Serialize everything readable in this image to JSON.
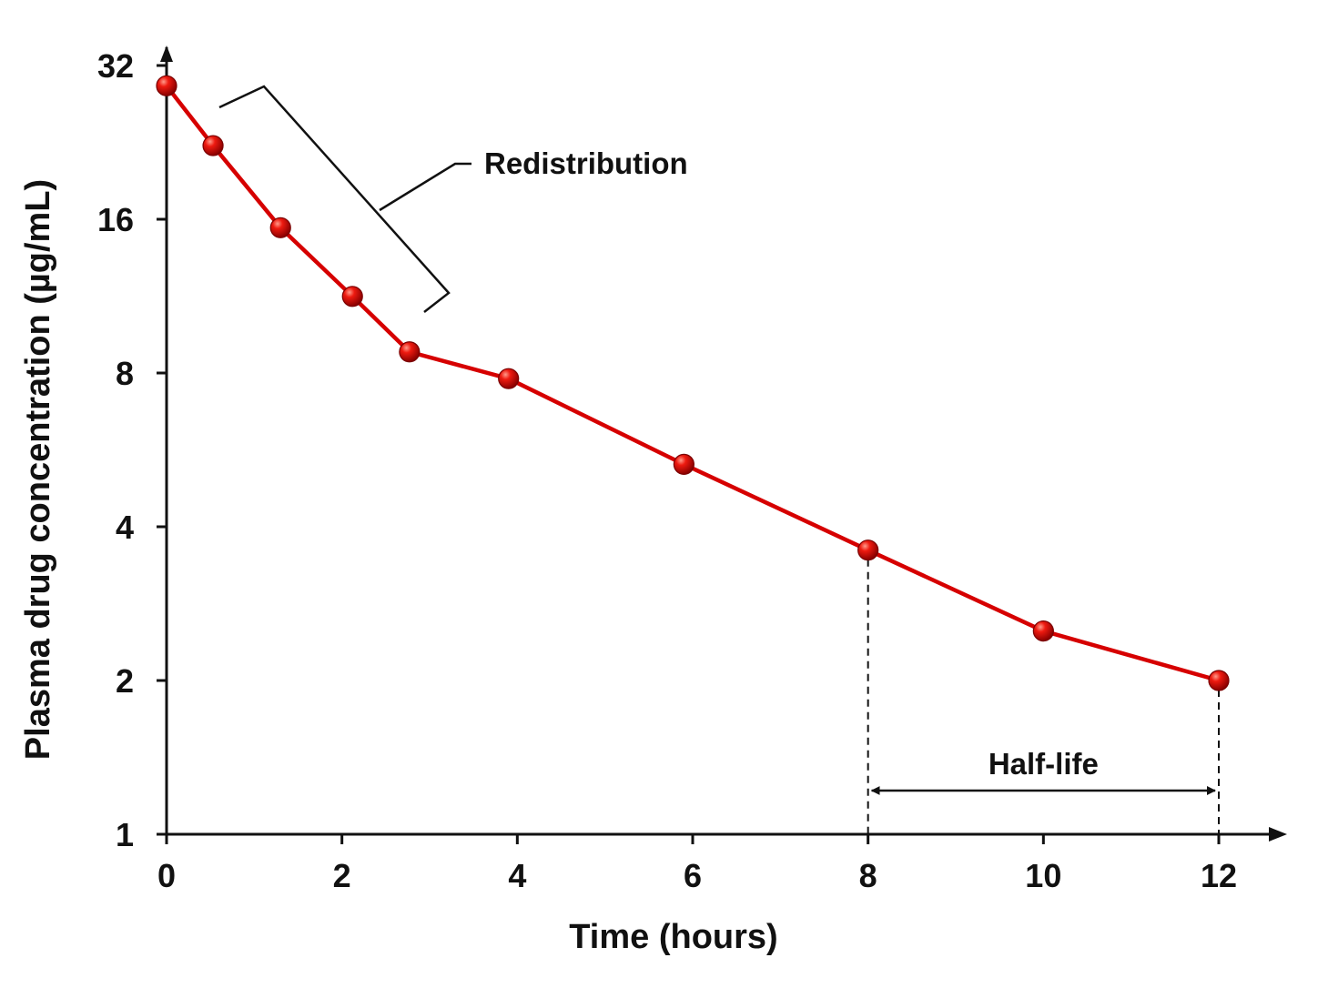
{
  "chart_data": {
    "type": "line",
    "title": "",
    "xlabel": "Time (hours)",
    "ylabel": "Plasma drug concentration (µg/mL)",
    "xlim": [
      0,
      12
    ],
    "ylim": [
      1,
      32
    ],
    "y_scale": "log2",
    "x_ticks": [
      0,
      2,
      4,
      6,
      8,
      10,
      12
    ],
    "x_tick_labels": [
      "0",
      "2",
      "4",
      "6",
      "8",
      "10",
      "12"
    ],
    "y_ticks": [
      1,
      2,
      4,
      8,
      16,
      32
    ],
    "y_tick_labels": [
      "1",
      "2",
      "4",
      "8",
      "16",
      "32"
    ],
    "grid": false,
    "legend": "none",
    "series": [
      {
        "color": "#d60000",
        "x": [
          0,
          0.53,
          1.3,
          2.12,
          2.77,
          3.9,
          5.9,
          8.0,
          10.0,
          12.0
        ],
        "y": [
          29.2,
          22.3,
          15.4,
          11.3,
          8.8,
          7.8,
          5.3,
          3.6,
          2.5,
          2.0
        ]
      }
    ],
    "annotations": {
      "redistribution": {
        "label": "Redistribution"
      },
      "half_life": {
        "label": "Half-life",
        "x_start": 8,
        "x_end": 12
      }
    }
  }
}
